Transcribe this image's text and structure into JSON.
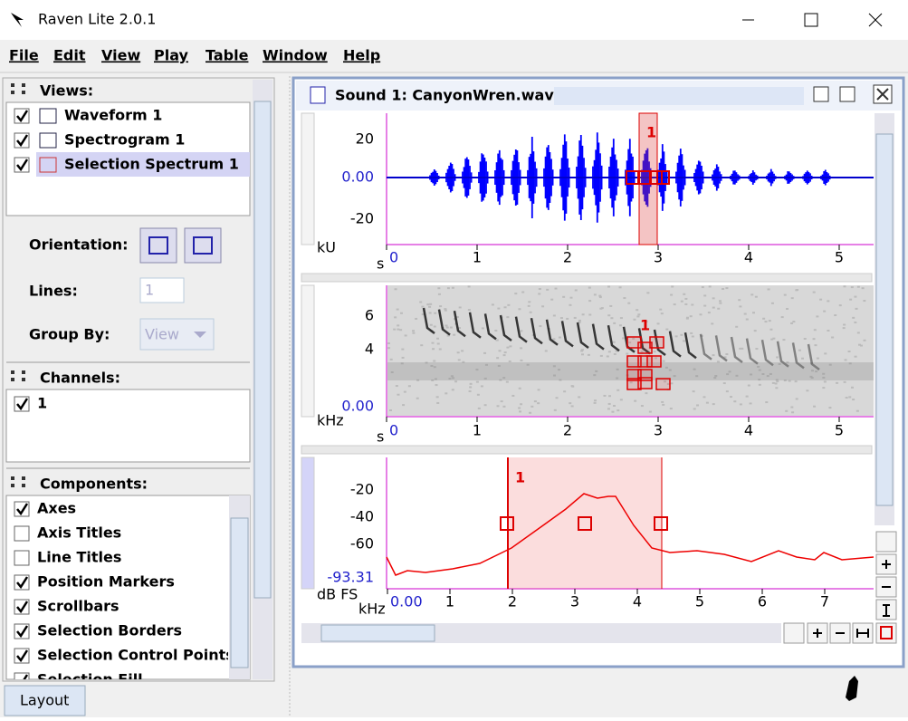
{
  "window": {
    "title": "Raven Lite 2.0.1"
  },
  "menu": [
    "File",
    "Edit",
    "View",
    "Play",
    "Table",
    "Window",
    "Help"
  ],
  "sidebar": {
    "views_header": "Views:",
    "views": [
      "Waveform 1",
      "Spectrogram 1",
      "Selection Spectrum 1"
    ],
    "orientation_label": "Orientation:",
    "lines_label": "Lines:",
    "lines_value": "1",
    "group_by_label": "Group By:",
    "group_by_value": "View",
    "channels_header": "Channels:",
    "channels": [
      "1"
    ],
    "components_header": "Components:",
    "components": [
      {
        "label": "Axes",
        "checked": true
      },
      {
        "label": "Axis Titles",
        "checked": false
      },
      {
        "label": "Line Titles",
        "checked": false
      },
      {
        "label": "Position Markers",
        "checked": true
      },
      {
        "label": "Scrollbars",
        "checked": true
      },
      {
        "label": "Selection Borders",
        "checked": true
      },
      {
        "label": "Selection Control Points",
        "checked": true
      },
      {
        "label": "Selection Fill",
        "checked": true
      }
    ],
    "tab": "Layout"
  },
  "sound_window": {
    "title": "Sound 1: CanyonWren.wav",
    "waveform": {
      "yticks": [
        "20",
        "0.00",
        "-20"
      ],
      "y_unit": "kU",
      "x_unit": "s",
      "xticks": [
        "0",
        "1",
        "2",
        "3",
        "4",
        "5"
      ],
      "selection_label": "1"
    },
    "spectrogram": {
      "yticks": [
        "6",
        "4",
        "0.00"
      ],
      "y_unit": "kHz",
      "x_unit": "s",
      "xticks": [
        "0",
        "1",
        "2",
        "3",
        "4",
        "5"
      ],
      "selection_label": "1"
    },
    "spectrum": {
      "yticks": [
        "-20",
        "-40",
        "-60",
        "-93.31"
      ],
      "y_unit": "dB FS",
      "x_unit": "kHz",
      "xticks": [
        "0.00",
        "1",
        "2",
        "3",
        "4",
        "5",
        "6",
        "7"
      ],
      "selection_label": "1"
    }
  }
}
